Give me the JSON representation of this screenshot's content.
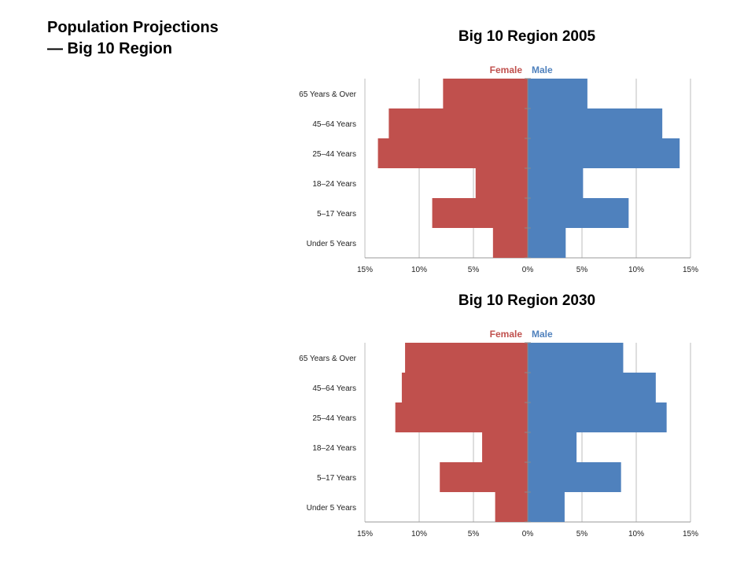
{
  "slide": {
    "title": "Population Projections— Big 10 Region"
  },
  "chart_data": [
    {
      "type": "bar",
      "orientation": "horizontal",
      "title": "Big 10 Region 2005",
      "categories": [
        "Under 5 Years",
        "5–17 Years",
        "18–24 Years",
        "25–44 Years",
        "45–64 Years",
        "65 Years & Over"
      ],
      "series": [
        {
          "name": "Female",
          "color": "#c0504d",
          "values": [
            3.2,
            8.8,
            4.8,
            13.8,
            12.8,
            7.8
          ]
        },
        {
          "name": "Male",
          "color": "#4f81bd",
          "values": [
            3.5,
            9.3,
            5.1,
            14.0,
            12.4,
            5.5
          ]
        }
      ],
      "xlim": [
        -15,
        15
      ],
      "xticks": [
        "15%",
        "10%",
        "5%",
        "0%",
        "5%",
        "10%",
        "15%"
      ],
      "grid": true,
      "legend_position": "top-center"
    },
    {
      "type": "bar",
      "orientation": "horizontal",
      "title": "Big 10 Region 2030",
      "categories": [
        "Under 5 Years",
        "5–17 Years",
        "18–24 Years",
        "25–44 Years",
        "45–64 Years",
        "65 Years & Over"
      ],
      "series": [
        {
          "name": "Female",
          "color": "#c0504d",
          "values": [
            3.0,
            8.1,
            4.2,
            12.2,
            11.6,
            11.3
          ]
        },
        {
          "name": "Male",
          "color": "#4f81bd",
          "values": [
            3.4,
            8.6,
            4.5,
            12.8,
            11.8,
            8.8
          ]
        }
      ],
      "xlim": [
        -15,
        15
      ],
      "xticks": [
        "15%",
        "10%",
        "5%",
        "0%",
        "5%",
        "10%",
        "15%"
      ],
      "grid": true,
      "legend_position": "top-center"
    }
  ]
}
